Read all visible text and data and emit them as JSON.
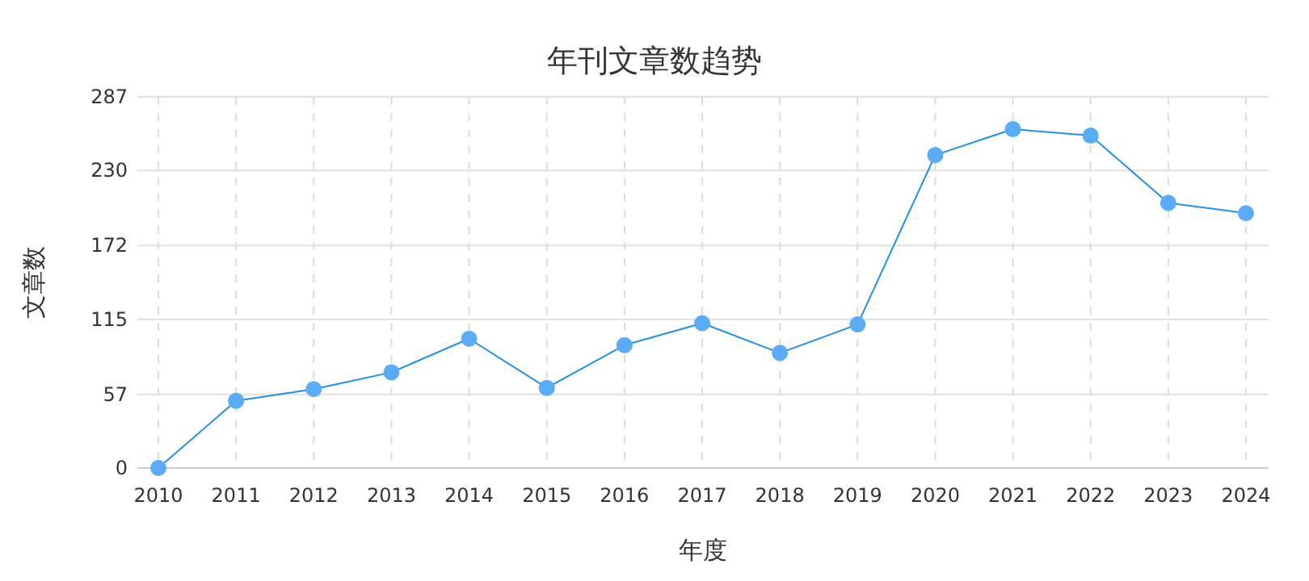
{
  "chart_data": {
    "type": "line",
    "title": "年刊文章数趋势",
    "xlabel": "年度",
    "ylabel": "文章数",
    "categories": [
      "2010",
      "2011",
      "2012",
      "2013",
      "2014",
      "2015",
      "2016",
      "2017",
      "2018",
      "2019",
      "2020",
      "2021",
      "2022",
      "2023",
      "2024"
    ],
    "series": [
      {
        "color": "#1e90e8",
        "values": [
          0,
          52,
          61,
          74,
          100,
          62,
          95,
          112,
          89,
          111,
          242,
          262,
          257,
          205,
          197
        ]
      }
    ],
    "ylim": [
      0,
      287
    ],
    "yticks": [
      0,
      57,
      115,
      172,
      230,
      287
    ],
    "grid": true,
    "marker": "circle",
    "line_style": "solid"
  }
}
